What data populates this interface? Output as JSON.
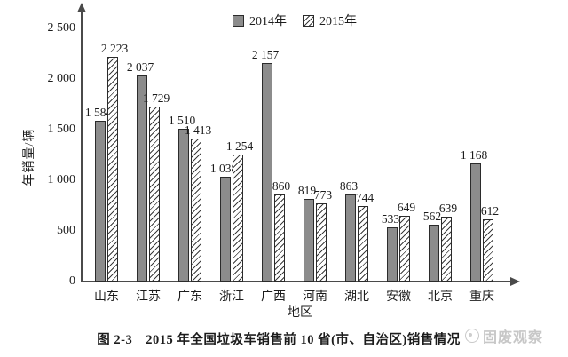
{
  "figure": {
    "caption": "图 2-3　2015 年全国垃圾车销售前 10 省(市、自治区)销售情况",
    "watermark_text": "固废观察"
  },
  "chart_data": {
    "type": "bar",
    "title": "",
    "categories": [
      "山东",
      "江苏",
      "广东",
      "浙江",
      "广西",
      "河南",
      "湖北",
      "安徽",
      "北京",
      "重庆"
    ],
    "series": [
      {
        "name": "2014年",
        "pattern": "solid-gray",
        "color": "#8c8c8c",
        "values": [
          1584,
          2037,
          1510,
          1038,
          2157,
          819,
          863,
          533,
          562,
          1168
        ]
      },
      {
        "name": "2015年",
        "pattern": "diagonal-hatch",
        "color": "#ffffff",
        "values": [
          2223,
          1729,
          1413,
          1254,
          860,
          773,
          744,
          649,
          639,
          612
        ]
      }
    ],
    "xlabel": "地区",
    "ylabel": "年销量/辆",
    "ylim": [
      0,
      2500
    ],
    "ytick_interval": 500,
    "ytick_labels": [
      "0",
      "500",
      "1 000",
      "1 500",
      "2 000",
      "2 500"
    ],
    "value_labels_shown": true,
    "number_format": "space-thousands",
    "legend_position": "top-center",
    "grid": false,
    "axis_color": "#4a4a4a",
    "bar_border_color": "#2b2b2b"
  }
}
